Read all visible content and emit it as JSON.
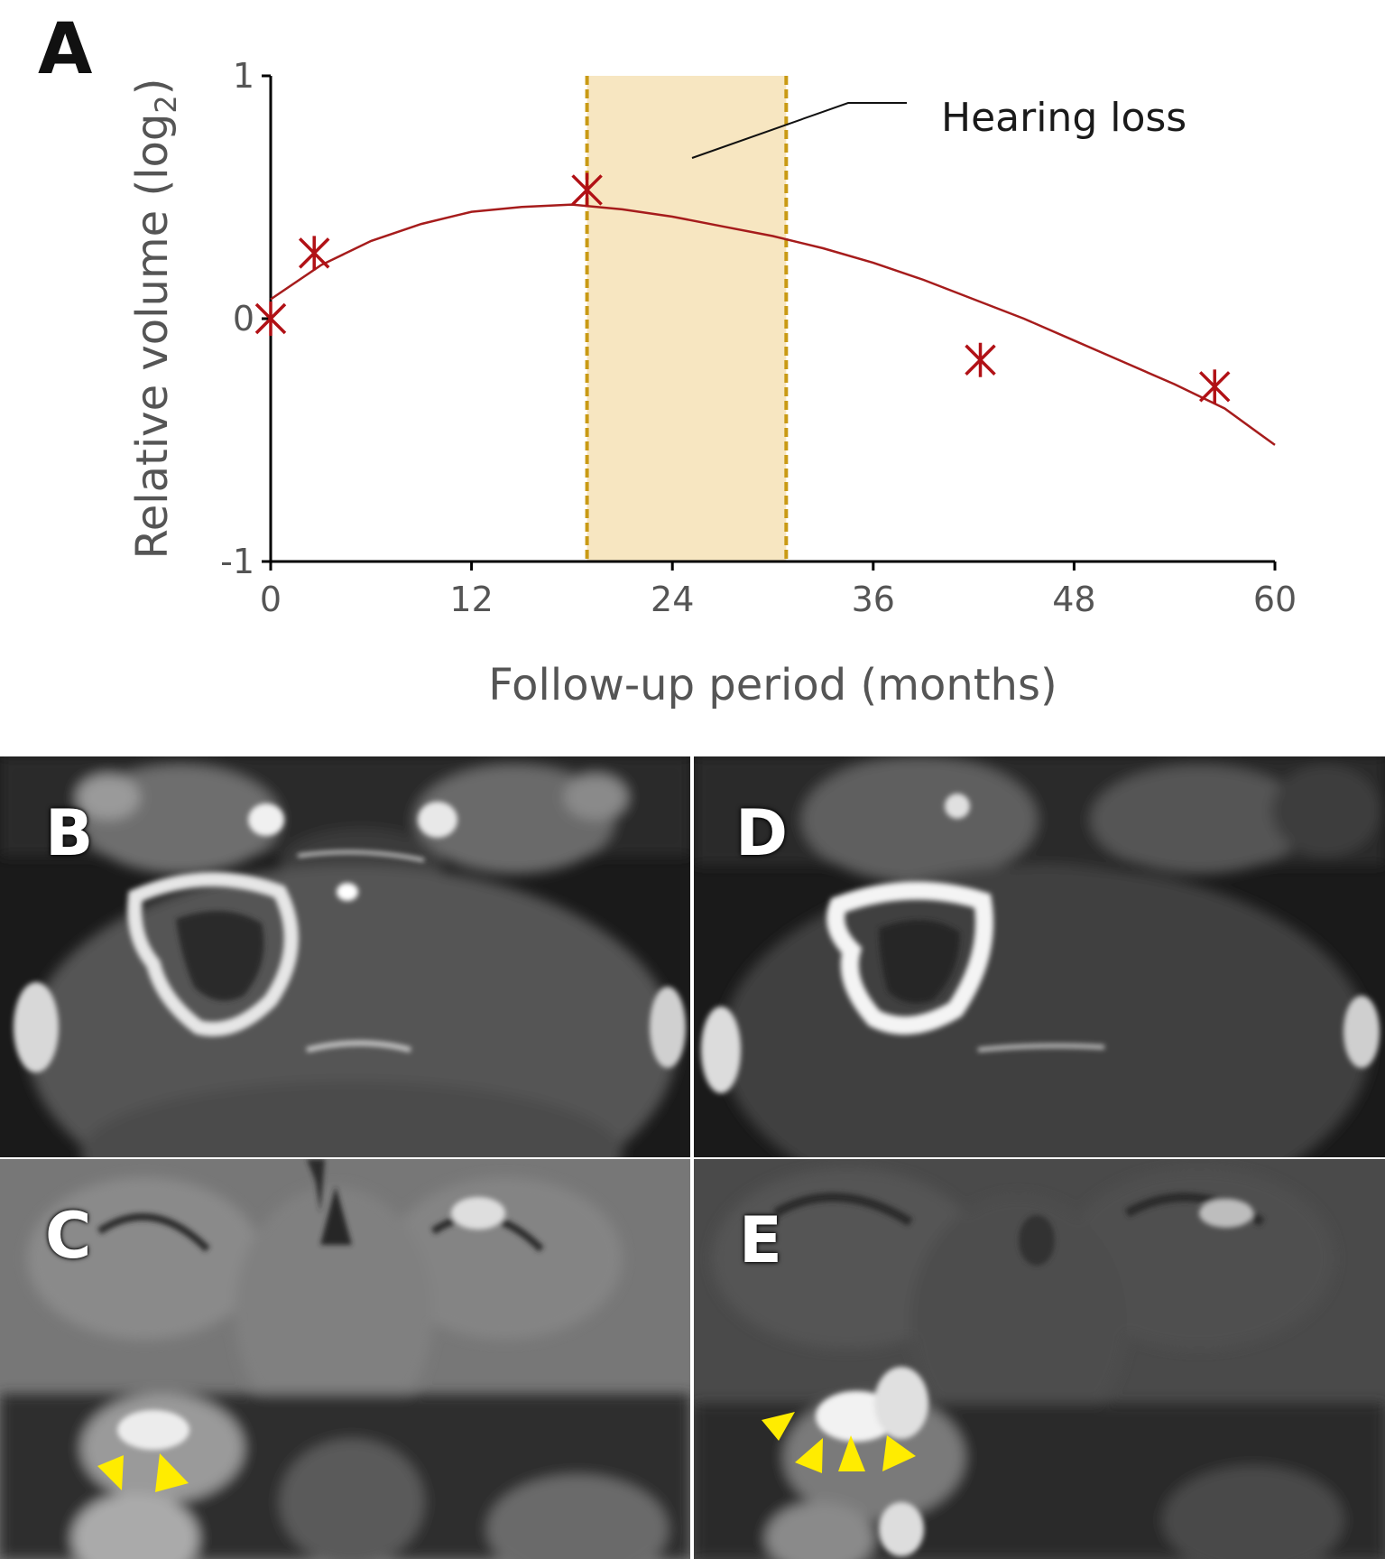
{
  "panel_labels": {
    "a": "A",
    "b": "B",
    "c": "C",
    "d": "D",
    "e": "E"
  },
  "chart_data": {
    "type": "scatter",
    "ylabel_main": "Relative volume (log",
    "ylabel_sub": "2",
    "ylabel_close": ")",
    "xlabel": "Follow-up period (months)",
    "xlim": [
      0,
      60
    ],
    "ylim": [
      -1,
      1
    ],
    "x_ticks": [
      0,
      12,
      24,
      36,
      48,
      60
    ],
    "y_ticks": [
      -1,
      0,
      1
    ],
    "x_tick_labels": [
      "0",
      "12",
      "24",
      "36",
      "48",
      "60"
    ],
    "y_tick_labels": [
      "-1",
      "0",
      "1"
    ],
    "grid": false,
    "observations": {
      "x": [
        0,
        2.6,
        18.9,
        42.4,
        56.4
      ],
      "y": [
        0.0,
        0.27,
        0.53,
        -0.17,
        -0.28
      ],
      "marker": "asterisk",
      "color": "#b11116"
    },
    "trend_curve": {
      "x": [
        0,
        3,
        6,
        9,
        12,
        15,
        18,
        21,
        24,
        27,
        30,
        33,
        36,
        39,
        42,
        45,
        48,
        51,
        54,
        57,
        60
      ],
      "y": [
        0.08,
        0.22,
        0.32,
        0.39,
        0.44,
        0.46,
        0.47,
        0.45,
        0.42,
        0.38,
        0.34,
        0.29,
        0.23,
        0.16,
        0.08,
        0.0,
        -0.09,
        -0.18,
        -0.27,
        -0.37,
        -0.52
      ],
      "color": "#a61c1c"
    },
    "shaded_region": {
      "x_start": 18.9,
      "x_end": 30.8,
      "label": "Hearing loss",
      "fill": "#f7e6c1",
      "border": "#c99a14"
    }
  },
  "mri_panels": [
    {
      "id": "B",
      "view": "axial",
      "arrowheads": 0
    },
    {
      "id": "D",
      "view": "axial",
      "arrowheads": 0
    },
    {
      "id": "C",
      "view": "coronal",
      "arrowheads": 2
    },
    {
      "id": "E",
      "view": "coronal",
      "arrowheads": 4
    }
  ],
  "arrow_color": "#ffec00"
}
